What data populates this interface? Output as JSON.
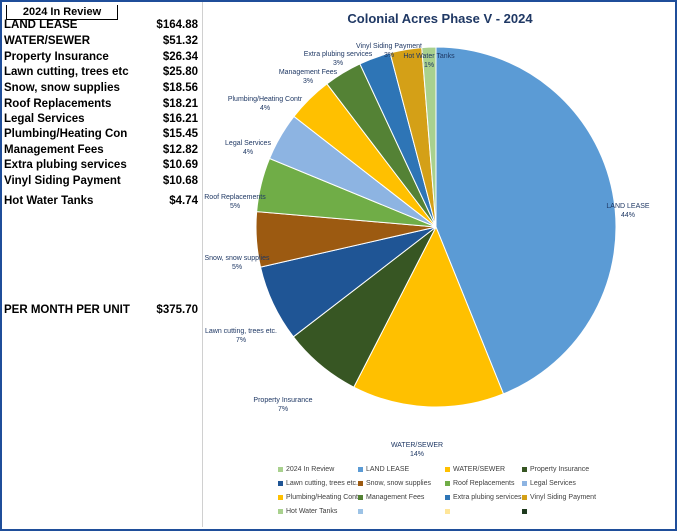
{
  "panel": {
    "title": "2024 In Review",
    "items": [
      {
        "label": "LAND LEASE",
        "amount": "$164.88"
      },
      {
        "label": "WATER/SEWER",
        "amount": "$51.32"
      },
      {
        "label": "Property Insurance",
        "amount": "$26.34"
      },
      {
        "label": "Lawn cutting, trees etc",
        "amount": "$25.80"
      },
      {
        "label": "Snow, snow supplies",
        "amount": "$18.56"
      },
      {
        "label": "Roof Replacements",
        "amount": "$18.21"
      },
      {
        "label": "Legal Services",
        "amount": "$16.21"
      },
      {
        "label": "Plumbing/Heating Con",
        "amount": "$15.45"
      },
      {
        "label": "Management Fees",
        "amount": "$12.82"
      },
      {
        "label": "Extra plubing services",
        "amount": "$10.69"
      },
      {
        "label": "Vinyl Siding Payment",
        "amount": "$10.68"
      },
      {
        "label": "Hot Water Tanks",
        "amount": "$4.74"
      }
    ],
    "total_label": "PER MONTH PER UNIT",
    "total_amount": "$375.70"
  },
  "chart_data": {
    "type": "pie",
    "title": "Colonial Acres Phase V - 2024",
    "slices": [
      {
        "label": "LAND LEASE",
        "value": 164.88,
        "pct_label": "44%",
        "color": "#5b9bd5"
      },
      {
        "label": "WATER/SEWER",
        "value": 51.32,
        "pct_label": "14%",
        "color": "#ffc000"
      },
      {
        "label": "Property Insurance",
        "value": 26.34,
        "pct_label": "7%",
        "color": "#375623"
      },
      {
        "label": "Lawn cutting, trees etc.",
        "value": 25.8,
        "pct_label": "7%",
        "color": "#1f5595"
      },
      {
        "label": "Snow, snow supplies",
        "value": 18.56,
        "pct_label": "5%",
        "color": "#9c5a11"
      },
      {
        "label": "Roof Replacements",
        "value": 18.21,
        "pct_label": "5%",
        "color": "#70ad47"
      },
      {
        "label": "Legal Services",
        "value": 16.21,
        "pct_label": "4%",
        "color": "#8db4e2"
      },
      {
        "label": "Plumbing/Heating Contr",
        "value": 15.45,
        "pct_label": "4%",
        "color": "#ffc000"
      },
      {
        "label": "Management Fees",
        "value": 12.82,
        "pct_label": "3%",
        "color": "#548235"
      },
      {
        "label": "Extra plubing services",
        "value": 10.69,
        "pct_label": "3%",
        "color": "#2e75b6"
      },
      {
        "label": "Vinyl Siding Payment",
        "value": 10.68,
        "pct_label": "3%",
        "color": "#d4a017"
      },
      {
        "label": "Hot Water Tanks",
        "value": 4.74,
        "pct_label": "1%",
        "color": "#a9d18e"
      }
    ],
    "legend": {
      "placement": "bottom",
      "entries": [
        {
          "label": "2024 In Review",
          "color": "#a9d18e"
        },
        {
          "label": "LAND LEASE",
          "color": "#5b9bd5"
        },
        {
          "label": "WATER/SEWER",
          "color": "#ffc000"
        },
        {
          "label": "Property Insurance",
          "color": "#375623"
        },
        {
          "label": "Lawn cutting, trees etc.",
          "color": "#1f5595"
        },
        {
          "label": "Snow, snow supplies",
          "color": "#9c5a11"
        },
        {
          "label": "Roof Replacements",
          "color": "#70ad47"
        },
        {
          "label": "Legal Services",
          "color": "#8db4e2"
        },
        {
          "label": "Plumbing/Heating Contr",
          "color": "#ffc000"
        },
        {
          "label": "Management Fees",
          "color": "#548235"
        },
        {
          "label": "Extra plubing services",
          "color": "#2e75b6"
        },
        {
          "label": "Vinyl Siding Payment",
          "color": "#d4a017"
        },
        {
          "label": "Hot Water Tanks",
          "color": "#a9d18e"
        },
        {
          "label": "",
          "color": "#9dc3e6"
        },
        {
          "label": "",
          "color": "#ffe699"
        },
        {
          "label": "",
          "color": "#1e3a1e"
        }
      ]
    }
  }
}
